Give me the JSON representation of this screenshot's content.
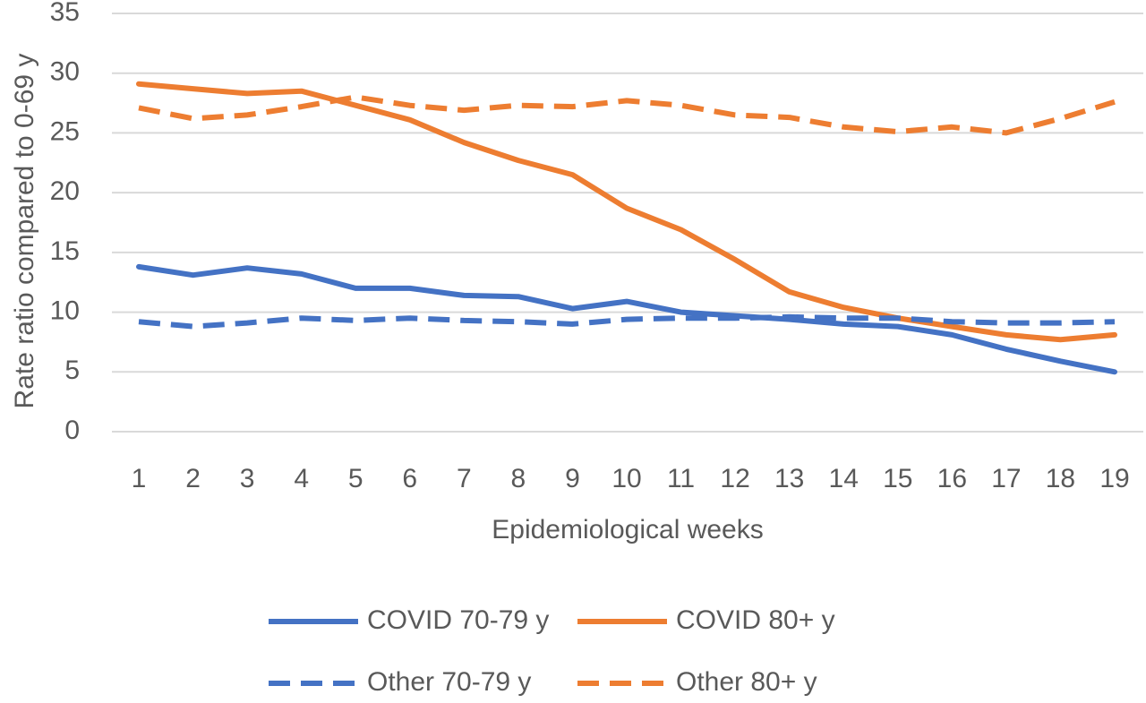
{
  "chart_data": {
    "type": "line",
    "title": "",
    "xlabel": "Epidemiological weeks",
    "ylabel": "Rate ratio compared to 0-69 y",
    "ylim": [
      0,
      35
    ],
    "yticks": [
      0,
      5,
      10,
      15,
      20,
      25,
      30,
      35
    ],
    "grid": true,
    "legend_position": "bottom",
    "categories": [
      "1",
      "2",
      "3",
      "4",
      "5",
      "6",
      "7",
      "8",
      "9",
      "10",
      "11",
      "12",
      "13",
      "14",
      "15",
      "16",
      "17",
      "18",
      "19"
    ],
    "series": [
      {
        "name": "COVID 70-79 y",
        "style": "solid",
        "color": "#4472c4",
        "values": [
          13.8,
          13.1,
          13.7,
          13.2,
          12.0,
          12.0,
          11.4,
          11.3,
          10.3,
          10.9,
          10.0,
          9.7,
          9.4,
          9.0,
          8.8,
          8.1,
          6.9,
          5.9,
          5.0
        ]
      },
      {
        "name": "COVID 80+ y",
        "style": "solid",
        "color": "#ed7d31",
        "values": [
          29.1,
          28.7,
          28.3,
          28.5,
          27.3,
          26.1,
          24.2,
          22.7,
          21.5,
          18.7,
          16.9,
          14.4,
          11.7,
          10.4,
          9.5,
          8.8,
          8.1,
          7.7,
          8.1
        ]
      },
      {
        "name": "Other 70-79 y",
        "style": "dashed",
        "color": "#4472c4",
        "values": [
          9.2,
          8.8,
          9.1,
          9.5,
          9.3,
          9.5,
          9.3,
          9.2,
          9.0,
          9.4,
          9.5,
          9.5,
          9.6,
          9.5,
          9.5,
          9.2,
          9.1,
          9.1,
          9.2
        ]
      },
      {
        "name": "Other 80+ y",
        "style": "dashed",
        "color": "#ed7d31",
        "values": [
          27.1,
          26.2,
          26.5,
          27.2,
          28.0,
          27.3,
          26.9,
          27.3,
          27.2,
          27.7,
          27.3,
          26.5,
          26.3,
          25.5,
          25.1,
          25.5,
          25.0,
          26.2,
          27.6
        ]
      }
    ]
  }
}
